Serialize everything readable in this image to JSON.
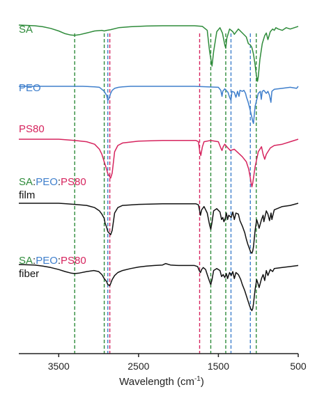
{
  "colors": {
    "SA": "#2e8b3a",
    "PEO": "#3f7fcc",
    "PS80": "#d6245e",
    "blend": "#111111"
  },
  "chart_data": {
    "type": "line",
    "xlabel": "Wavelength",
    "xlabel_unit_base": "(cm",
    "xlabel_unit_sup": "-1",
    "xlabel_unit_close": ")",
    "x_reversed": true,
    "xlim": [
      4000,
      500
    ],
    "xticks": [
      "3500",
      "2500",
      "1500",
      "500"
    ],
    "xtick_values": [
      3500,
      2500,
      1500,
      500
    ],
    "labels": {
      "SA": "SA",
      "PEO": "PEO",
      "PS80": "PS80",
      "colon": ":",
      "film": "film",
      "fiber": "fiber"
    },
    "series": [
      {
        "name": "SA",
        "color": "#2e8b3a",
        "x": [
          4000,
          3900,
          3800,
          3700,
          3600,
          3500,
          3420,
          3350,
          3300,
          3240,
          3150,
          3050,
          2960,
          2930,
          2900,
          2850,
          2750,
          2600,
          2400,
          2200,
          2000,
          1800,
          1700,
          1640,
          1610,
          1580,
          1560,
          1520,
          1480,
          1450,
          1420,
          1408,
          1395,
          1360,
          1320,
          1300,
          1250,
          1200,
          1150,
          1125,
          1100,
          1080,
          1060,
          1040,
          1025,
          1010,
          1000,
          980,
          950,
          920,
          900,
          880,
          850,
          820,
          800,
          780,
          750,
          700,
          650,
          600,
          550,
          500
        ],
        "y": [
          0,
          0.5,
          1,
          2.5,
          5,
          9,
          13,
          15,
          15.5,
          14.5,
          12,
          9,
          8,
          9,
          8,
          7,
          4,
          2.5,
          1.5,
          1,
          1,
          1,
          2,
          8,
          40,
          62,
          40,
          10,
          4,
          12,
          30,
          35,
          20,
          6,
          10,
          14,
          6,
          12,
          18,
          28,
          30,
          34,
          44,
          60,
          75,
          85,
          78,
          52,
          28,
          16,
          12,
          22,
          10,
          6,
          8,
          4,
          6,
          8,
          4,
          6,
          4,
          2
        ]
      },
      {
        "name": "PEO",
        "color": "#3f7fcc",
        "x": [
          4000,
          3800,
          3600,
          3400,
          3200,
          3050,
          2990,
          2960,
          2930,
          2900,
          2885,
          2870,
          2850,
          2830,
          2800,
          2750,
          2700,
          2600,
          2400,
          2200,
          2000,
          1800,
          1500,
          1470,
          1455,
          1445,
          1420,
          1380,
          1360,
          1342,
          1330,
          1300,
          1280,
          1260,
          1242,
          1230,
          1200,
          1180,
          1160,
          1148,
          1130,
          1110,
          1095,
          1080,
          1070,
          1060,
          1040,
          1000,
          975,
          963,
          950,
          930,
          900,
          880,
          860,
          842,
          830,
          800,
          700,
          600,
          520,
          500
        ],
        "y": [
          0,
          0,
          0,
          0,
          0,
          1,
          2,
          6,
          10,
          18,
          28,
          24,
          14,
          8,
          4,
          2,
          1,
          0,
          0,
          0,
          0,
          0,
          2,
          8,
          20,
          10,
          5,
          12,
          22,
          28,
          10,
          12,
          22,
          10,
          20,
          8,
          10,
          8,
          14,
          22,
          30,
          42,
          52,
          62,
          70,
          74,
          40,
          14,
          10,
          26,
          10,
          8,
          14,
          10,
          18,
          32,
          10,
          6,
          4,
          2,
          4,
          0
        ]
      },
      {
        "name": "PS80",
        "color": "#d6245e",
        "x": [
          4000,
          3700,
          3500,
          3400,
          3300,
          3150,
          3050,
          2990,
          2960,
          2940,
          2920,
          2900,
          2885,
          2860,
          2850,
          2830,
          2800,
          2760,
          2700,
          2500,
          2200,
          1900,
          1780,
          1750,
          1735,
          1720,
          1700,
          1680,
          1600,
          1500,
          1470,
          1455,
          1440,
          1420,
          1380,
          1350,
          1300,
          1250,
          1200,
          1150,
          1120,
          1100,
          1090,
          1080,
          1070,
          1060,
          1040,
          1000,
          960,
          940,
          920,
          900,
          850,
          800,
          700,
          600,
          500
        ],
        "y": [
          0,
          0,
          0,
          1,
          2,
          4,
          8,
          16,
          24,
          32,
          40,
          48,
          55,
          60,
          62,
          54,
          20,
          10,
          6,
          3,
          2,
          2,
          2,
          4,
          18,
          26,
          12,
          4,
          2,
          4,
          14,
          18,
          12,
          8,
          14,
          18,
          16,
          22,
          28,
          36,
          48,
          62,
          70,
          76,
          70,
          62,
          44,
          20,
          12,
          24,
          32,
          24,
          14,
          10,
          8,
          4,
          0
        ]
      },
      {
        "name": "film",
        "color": "#111111",
        "x": [
          4000,
          3700,
          3500,
          3400,
          3300,
          3150,
          3050,
          2990,
          2960,
          2930,
          2920,
          2900,
          2885,
          2860,
          2850,
          2830,
          2800,
          2760,
          2700,
          2500,
          2200,
          1900,
          1780,
          1750,
          1735,
          1725,
          1710,
          1680,
          1640,
          1610,
          1595,
          1580,
          1560,
          1520,
          1480,
          1460,
          1445,
          1430,
          1415,
          1400,
          1385,
          1370,
          1340,
          1320,
          1300,
          1280,
          1250,
          1230,
          1200,
          1170,
          1150,
          1130,
          1110,
          1095,
          1080,
          1070,
          1060,
          1040,
          1020,
          1000,
          990,
          960,
          940,
          930,
          900,
          880,
          860,
          840,
          830,
          820,
          800,
          700,
          600,
          500
        ],
        "y": [
          0,
          0,
          0,
          1,
          2,
          4,
          8,
          14,
          20,
          28,
          36,
          44,
          52,
          56,
          58,
          50,
          18,
          8,
          4,
          2,
          1,
          1,
          1,
          3,
          14,
          22,
          12,
          6,
          18,
          40,
          48,
          35,
          14,
          10,
          16,
          30,
          26,
          34,
          28,
          18,
          30,
          22,
          26,
          16,
          30,
          18,
          20,
          32,
          42,
          54,
          66,
          76,
          84,
          90,
          92,
          88,
          80,
          50,
          30,
          40,
          46,
          30,
          22,
          34,
          14,
          20,
          32,
          18,
          30,
          24,
          12,
          6,
          4,
          0
        ]
      },
      {
        "name": "fiber",
        "color": "#111111",
        "x": [
          4000,
          3900,
          3800,
          3700,
          3600,
          3500,
          3420,
          3350,
          3300,
          3240,
          3150,
          3060,
          3000,
          2960,
          2930,
          2900,
          2885,
          2860,
          2850,
          2830,
          2800,
          2760,
          2700,
          2600,
          2500,
          2400,
          2300,
          2200,
          2160,
          2100,
          2000,
          1900,
          1800,
          1760,
          1740,
          1725,
          1710,
          1690,
          1660,
          1640,
          1610,
          1595,
          1580,
          1560,
          1520,
          1480,
          1460,
          1440,
          1420,
          1400,
          1385,
          1360,
          1340,
          1320,
          1300,
          1280,
          1250,
          1220,
          1200,
          1170,
          1150,
          1130,
          1110,
          1095,
          1080,
          1070,
          1060,
          1040,
          1020,
          1000,
          990,
          960,
          940,
          920,
          900,
          880,
          850,
          820,
          800,
          700,
          600,
          500
        ],
        "y": [
          0,
          0.5,
          1,
          3,
          6,
          10,
          14,
          17,
          18,
          17,
          14,
          12,
          14,
          20,
          28,
          34,
          40,
          42,
          38,
          30,
          22,
          16,
          12,
          8,
          5,
          3,
          2,
          1,
          -2,
          1,
          2,
          2,
          2,
          4,
          12,
          16,
          10,
          6,
          10,
          20,
          34,
          40,
          30,
          12,
          8,
          12,
          24,
          20,
          26,
          18,
          28,
          16,
          22,
          14,
          28,
          16,
          20,
          30,
          40,
          52,
          62,
          72,
          82,
          88,
          92,
          88,
          78,
          50,
          30,
          40,
          46,
          28,
          20,
          32,
          12,
          22,
          10,
          14,
          8,
          6,
          4,
          2
        ]
      }
    ],
    "reference_lines": [
      {
        "x": 3300,
        "color": "#2e8b3a"
      },
      {
        "x": 2930,
        "color": "#2e8b3a"
      },
      {
        "x": 2885,
        "color": "#3f7fcc"
      },
      {
        "x": 2860,
        "color": "#d6245e"
      },
      {
        "x": 1735,
        "color": "#d6245e"
      },
      {
        "x": 1595,
        "color": "#2e8b3a"
      },
      {
        "x": 1408,
        "color": "#2e8b3a"
      },
      {
        "x": 1342,
        "color": "#3f7fcc"
      },
      {
        "x": 1100,
        "color": "#3f7fcc"
      },
      {
        "x": 1025,
        "color": "#2e8b3a"
      }
    ]
  }
}
